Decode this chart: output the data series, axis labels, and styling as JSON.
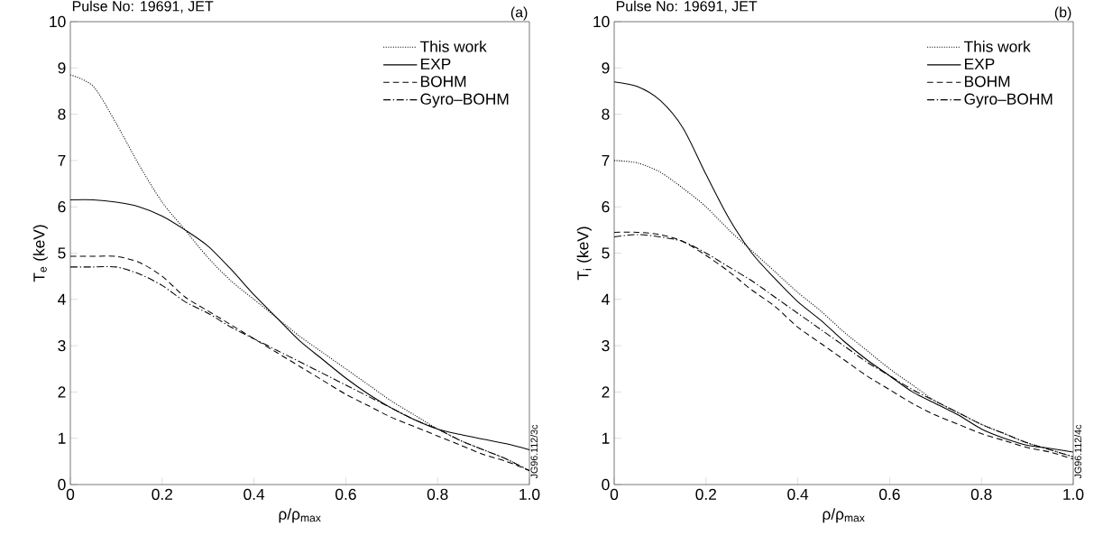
{
  "chart_data": [
    {
      "type": "line",
      "title": "Pulse No: 19691, JET",
      "xlabel": "ρ/ρ$_{max}$",
      "ylabel": "T$_{e}$ (keV)",
      "annotations": [
        "(a)",
        "JG96.112/3c"
      ],
      "x": [
        0,
        0.05,
        0.1,
        0.15,
        0.2,
        0.25,
        0.3,
        0.35,
        0.4,
        0.45,
        0.5,
        0.55,
        0.6,
        0.65,
        0.7,
        0.75,
        0.8,
        0.85,
        0.9,
        0.95,
        1.0
      ],
      "series": [
        {
          "name": "This work",
          "color": "#000000",
          "line_style": "dotted",
          "values": [
            8.85,
            8.6,
            7.8,
            6.9,
            6.1,
            5.5,
            4.9,
            4.4,
            4.0,
            3.6,
            3.2,
            2.85,
            2.5,
            2.15,
            1.8,
            1.5,
            1.2,
            0.95,
            0.75,
            0.55,
            0.3
          ]
        },
        {
          "name": "EXP",
          "color": "#000000",
          "line_style": "solid",
          "values": [
            6.15,
            6.15,
            6.1,
            6.0,
            5.8,
            5.5,
            5.15,
            4.65,
            4.1,
            3.6,
            3.1,
            2.7,
            2.3,
            1.95,
            1.65,
            1.4,
            1.2,
            1.08,
            0.98,
            0.88,
            0.75
          ]
        },
        {
          "name": "BOHM",
          "color": "#000000",
          "line_style": "dashed",
          "values": [
            4.93,
            4.93,
            4.93,
            4.8,
            4.5,
            4.05,
            3.75,
            3.45,
            3.15,
            2.85,
            2.55,
            2.25,
            1.95,
            1.7,
            1.45,
            1.25,
            1.05,
            0.85,
            0.65,
            0.5,
            0.3
          ]
        },
        {
          "name": "Gyro–BOHM",
          "color": "#000000",
          "line_style": "dashdot",
          "values": [
            4.7,
            4.7,
            4.7,
            4.55,
            4.3,
            3.95,
            3.7,
            3.4,
            3.15,
            2.9,
            2.65,
            2.4,
            2.15,
            1.9,
            1.65,
            1.4,
            1.2,
            0.95,
            0.75,
            0.55,
            0.3
          ]
        }
      ],
      "xlim": [
        0,
        1
      ],
      "ylim": [
        0,
        10
      ],
      "xticks": [
        0,
        0.2,
        0.4,
        0.6,
        0.8,
        {
          "value": 1,
          "label": "1.0"
        }
      ],
      "yticks": [
        0,
        1,
        2,
        3,
        4,
        5,
        6,
        7,
        8,
        9,
        10
      ],
      "grid": false,
      "legend": "top right",
      "marker": "none"
    },
    {
      "type": "line",
      "title": "Pulse No: 19691, JET",
      "xlabel": "ρ/ρ$_{max}$",
      "ylabel": "T$_{i}$ (keV)",
      "annotations": [
        "(b)",
        "JG96.112/4c"
      ],
      "x": [
        0,
        0.05,
        0.1,
        0.15,
        0.2,
        0.25,
        0.3,
        0.35,
        0.4,
        0.45,
        0.5,
        0.55,
        0.6,
        0.65,
        0.7,
        0.75,
        0.8,
        0.85,
        0.9,
        0.95,
        1.0
      ],
      "series": [
        {
          "name": "This work",
          "color": "#000000",
          "line_style": "dotted",
          "values": [
            7.0,
            6.95,
            6.75,
            6.4,
            6.0,
            5.5,
            5.05,
            4.6,
            4.15,
            3.75,
            3.3,
            2.9,
            2.5,
            2.15,
            1.8,
            1.55,
            1.3,
            1.1,
            0.9,
            0.75,
            0.6
          ]
        },
        {
          "name": "EXP",
          "color": "#000000",
          "line_style": "solid",
          "values": [
            8.7,
            8.6,
            8.3,
            7.7,
            6.7,
            5.75,
            5.0,
            4.45,
            3.95,
            3.55,
            3.1,
            2.7,
            2.35,
            2.0,
            1.75,
            1.5,
            1.2,
            1.0,
            0.85,
            0.78,
            0.7
          ]
        },
        {
          "name": "BOHM",
          "color": "#000000",
          "line_style": "dashed",
          "values": [
            5.45,
            5.45,
            5.4,
            5.25,
            4.95,
            4.6,
            4.2,
            3.85,
            3.4,
            3.05,
            2.7,
            2.35,
            2.05,
            1.75,
            1.5,
            1.3,
            1.1,
            0.95,
            0.8,
            0.7,
            0.55
          ]
        },
        {
          "name": "Gyro–BOHM",
          "color": "#000000",
          "line_style": "dashdot",
          "values": [
            5.35,
            5.4,
            5.35,
            5.25,
            5.0,
            4.7,
            4.4,
            4.05,
            3.7,
            3.35,
            3.0,
            2.65,
            2.35,
            2.05,
            1.8,
            1.55,
            1.3,
            1.1,
            0.9,
            0.75,
            0.6
          ]
        }
      ],
      "xlim": [
        0,
        1
      ],
      "ylim": [
        0,
        10
      ],
      "xticks": [
        0,
        0.2,
        0.4,
        0.6,
        0.8,
        {
          "value": 1,
          "label": "1.0"
        }
      ],
      "yticks": [
        0,
        1,
        2,
        3,
        4,
        5,
        6,
        7,
        8,
        9,
        10
      ],
      "grid": false,
      "legend": "top right",
      "marker": "none"
    }
  ]
}
